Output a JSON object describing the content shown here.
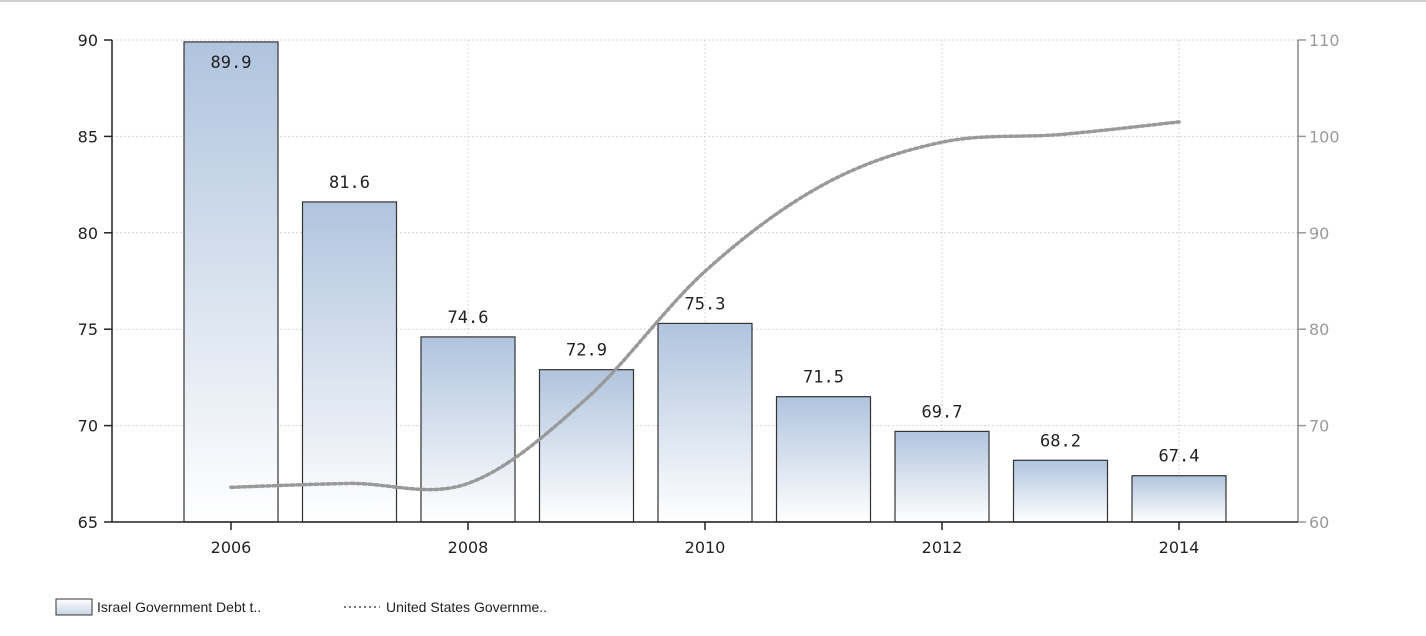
{
  "chart_data": {
    "type": "bar",
    "x": [
      2006,
      2007,
      2008,
      2009,
      2010,
      2011,
      2012,
      2013,
      2014
    ],
    "x_tick_labels": [
      "2006",
      "2008",
      "2010",
      "2012",
      "2014"
    ],
    "series": [
      {
        "name": "Israel Government Debt t..",
        "type": "bar",
        "axis": "left",
        "values": [
          89.9,
          81.6,
          74.6,
          72.9,
          75.3,
          71.5,
          69.7,
          68.2,
          67.4
        ],
        "labels": [
          "89.9",
          "81.6",
          "74.6",
          "72.9",
          "75.3",
          "71.5",
          "69.7",
          "68.2",
          "67.4"
        ]
      },
      {
        "name": "United States Governme..",
        "type": "line",
        "style": "dotted",
        "axis": "right",
        "values": [
          63.6,
          64.0,
          64.0,
          72.8,
          86.0,
          95.0,
          99.4,
          100.2,
          101.5
        ]
      }
    ],
    "y_left": {
      "ylim": [
        65,
        90
      ],
      "ticks": [
        "65",
        "70",
        "75",
        "80",
        "85",
        "90"
      ]
    },
    "y_right": {
      "ylim": [
        60,
        110
      ],
      "ticks": [
        "60",
        "70",
        "80",
        "90",
        "100",
        "110"
      ]
    },
    "grid": true,
    "legend_position": "bottom-left",
    "colors": {
      "bar_top": "#b0c4de",
      "bar_bottom": "#ffffff",
      "bar_stroke": "#333333",
      "line": "#999999",
      "grid": "#d4d4d4"
    }
  }
}
